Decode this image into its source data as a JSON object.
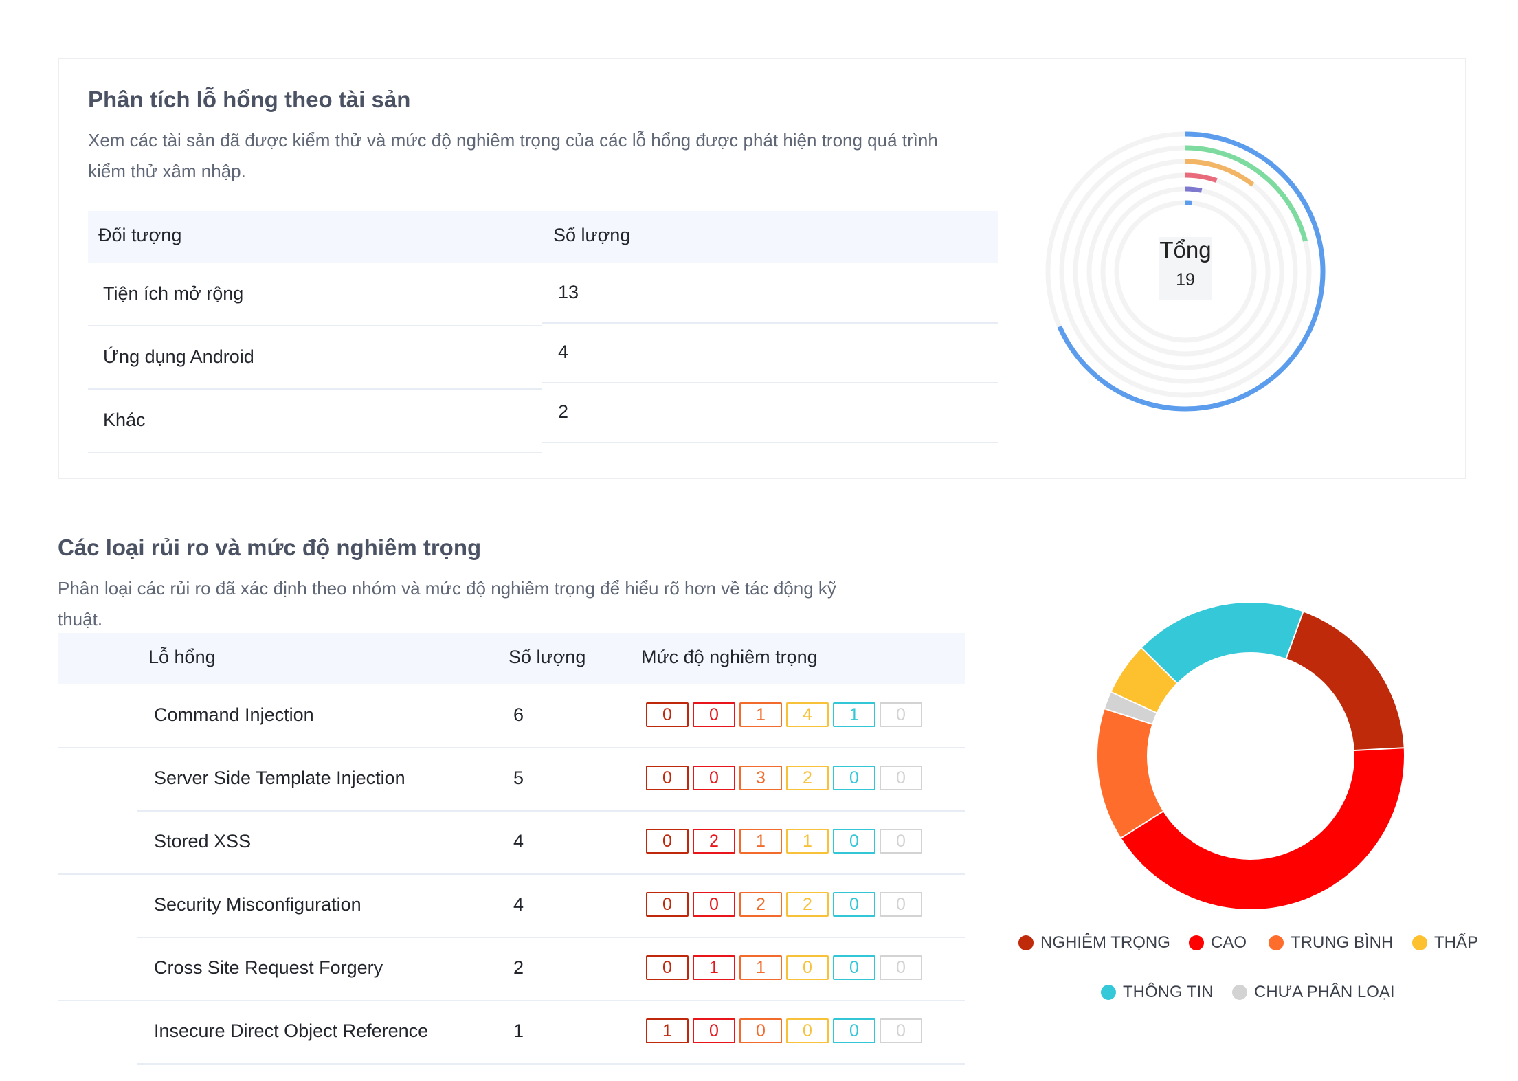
{
  "asset_section": {
    "title": "Phân tích lỗ hổng theo tài sản",
    "description_line1": "Xem các tài sản đã được kiểm thử và mức độ nghiêm trọng của các lỗ hổng được phát hiện trong quá trình",
    "description_line2": "kiểm thử xâm nhập.",
    "columns": [
      "Đối tượng",
      "Số lượng"
    ],
    "rows": [
      {
        "name": "Tiện ích mở rộng",
        "count": "13"
      },
      {
        "name": "Ứng dụng Android",
        "count": "4"
      },
      {
        "name": "Khác",
        "count": "2"
      }
    ],
    "chart_center": {
      "label": "Tổng",
      "value": "19"
    },
    "chart_data": {
      "type": "radial-bar",
      "total": 19,
      "colors": [
        "#5b9cec",
        "#7ddba0",
        "#f1b565",
        "#e96a7a",
        "#7f78cf",
        "#5b9cec"
      ],
      "track_color": "#f3f3f3",
      "rings": [
        13,
        4,
        2,
        1,
        0.6,
        0.3
      ]
    }
  },
  "risk_section": {
    "title": "Các loại rủi ro và mức độ nghiêm trọng",
    "description_line1": "Phân loại các rủi ro đã xác định theo nhóm và mức độ nghiêm trọng để hiểu rõ hơn về tác động kỹ",
    "description_line2": "thuật.",
    "columns": [
      "Lỗ hổng",
      "Số lượng",
      "Mức độ nghiêm trọng"
    ],
    "severity_colors": [
      "#c0280c",
      "#e8161b",
      "#f26b2c",
      "#f7c13a",
      "#33c6d6",
      "#d3d3d3"
    ],
    "rows": [
      {
        "name": "Command Injection",
        "count": "6",
        "severity": [
          "0",
          "0",
          "1",
          "4",
          "1",
          "0"
        ]
      },
      {
        "name": "Server Side Template Injection",
        "count": "5",
        "severity": [
          "0",
          "0",
          "3",
          "2",
          "0",
          "0"
        ]
      },
      {
        "name": "Stored XSS",
        "count": "4",
        "severity": [
          "0",
          "2",
          "1",
          "1",
          "0",
          "0"
        ]
      },
      {
        "name": "Security Misconfiguration",
        "count": "4",
        "severity": [
          "0",
          "0",
          "2",
          "2",
          "0",
          "0"
        ]
      },
      {
        "name": "Cross Site Request Forgery",
        "count": "2",
        "severity": [
          "0",
          "1",
          "1",
          "0",
          "0",
          "0"
        ]
      },
      {
        "name": "Insecure Direct Object Reference",
        "count": "1",
        "severity": [
          "1",
          "0",
          "0",
          "0",
          "0",
          "0"
        ]
      }
    ],
    "chart_data": {
      "type": "pie",
      "donut": true,
      "slices": [
        {
          "name": "NGHIÊM TRỌNG",
          "value": 4,
          "color": "#bf2a0b"
        },
        {
          "name": "CAO",
          "value": 9,
          "color": "#fe0000"
        },
        {
          "name": "TRUNG BÌNH",
          "value": 3,
          "color": "#ff6d2c"
        },
        {
          "name": "CHƯA PHÂN LOẠI",
          "value": 0.4,
          "color": "#d3d3d3"
        },
        {
          "name": "THẤP",
          "value": 1.2,
          "color": "#fdc12f"
        },
        {
          "name": "THÔNG TIN",
          "value": 3.9,
          "color": "#35c8d8"
        }
      ],
      "legend": [
        {
          "label": "NGHIÊM TRỌNG",
          "color": "#bf2a0b"
        },
        {
          "label": "CAO",
          "color": "#fe0000"
        },
        {
          "label": "TRUNG BÌNH",
          "color": "#ff6d2c"
        },
        {
          "label": "THẤP",
          "color": "#fdc12f"
        },
        {
          "label": "THÔNG TIN",
          "color": "#35c8d8"
        },
        {
          "label": "CHƯA PHÂN LOẠI",
          "color": "#d3d3d3"
        }
      ],
      "legend_position": "bottom"
    }
  }
}
